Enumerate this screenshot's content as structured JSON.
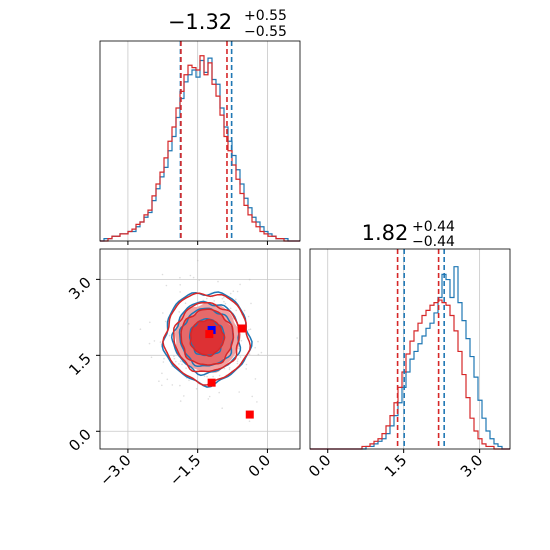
{
  "colors": {
    "blue": "#1f77b4",
    "red": "#d62728",
    "red_fill_outer": "#f1a3a3",
    "red_fill_mid": "#e66a6b",
    "red_fill_inner": "#dd3134",
    "marker_blue": "#0000ff",
    "marker_red": "#ff0000",
    "grid": "#c8c8c8",
    "axis": "#000000"
  },
  "chart_data": [
    {
      "type": "histogram",
      "panel": "top-left marginal",
      "param": "x",
      "title_main": "−1.32",
      "title_sup": "+0.55",
      "title_sub": "−0.55",
      "xlim": [
        -3.6,
        0.7
      ],
      "grid": true,
      "quantile_lines": {
        "blue": [
          -1.87,
          -0.77
        ],
        "red": [
          -1.86,
          -0.87
        ]
      },
      "bin_start": -3.6,
      "bin_width": 0.086,
      "series": [
        {
          "color": "blue",
          "counts": [
            0,
            1,
            1,
            2,
            2,
            3,
            3,
            4,
            4,
            6,
            8,
            10,
            12,
            17,
            22,
            27,
            31,
            38,
            44,
            52,
            60,
            67,
            70,
            72,
            69,
            76,
            71,
            77,
            68,
            66,
            56,
            48,
            42,
            36,
            30,
            24,
            18,
            14,
            10,
            8,
            6,
            4,
            3,
            2,
            1,
            1,
            1,
            0,
            0,
            0
          ]
        },
        {
          "color": "red",
          "counts": [
            0,
            0,
            1,
            2,
            2,
            3,
            3,
            4,
            5,
            7,
            8,
            11,
            13,
            19,
            24,
            29,
            35,
            42,
            48,
            56,
            63,
            70,
            74,
            73,
            72,
            78,
            70,
            75,
            66,
            61,
            53,
            44,
            38,
            32,
            26,
            20,
            15,
            11,
            8,
            6,
            4,
            3,
            2,
            2,
            1,
            1,
            0,
            0,
            0,
            0
          ]
        }
      ]
    },
    {
      "type": "histogram",
      "panel": "bottom-right marginal",
      "param": "y",
      "title_main": "1.82",
      "title_sup": "+0.44",
      "title_sub": "−0.44",
      "xlim": [
        -0.35,
        3.6
      ],
      "xticks": [
        "0.0",
        "1.5",
        "3.0"
      ],
      "grid": true,
      "quantile_lines": {
        "blue": [
          1.51,
          2.3
        ],
        "red": [
          1.38,
          2.19
        ]
      },
      "bin_start": -0.35,
      "bin_width": 0.079,
      "series": [
        {
          "color": "blue",
          "counts": [
            0,
            0,
            0,
            0,
            0,
            0,
            0,
            0,
            0,
            0,
            0,
            0,
            0,
            0,
            1,
            1,
            2,
            3,
            4,
            6,
            9,
            13,
            18,
            24,
            30,
            35,
            38,
            41,
            44,
            47,
            49,
            53,
            59,
            68,
            66,
            59,
            71,
            57,
            50,
            43,
            36,
            28,
            19,
            12,
            7,
            4,
            2,
            1,
            0,
            0
          ]
        },
        {
          "color": "red",
          "counts": [
            0,
            0,
            0,
            0,
            0,
            0,
            0,
            0,
            0,
            0,
            0,
            0,
            0,
            1,
            1,
            2,
            3,
            4,
            6,
            9,
            13,
            18,
            24,
            30,
            37,
            42,
            46,
            49,
            52,
            54,
            56,
            57,
            58,
            57,
            56,
            52,
            46,
            38,
            29,
            20,
            12,
            7,
            4,
            2,
            1,
            1,
            0,
            0,
            0,
            0
          ]
        }
      ]
    },
    {
      "type": "contour",
      "panel": "bottom-left joint",
      "xlim": [
        -3.6,
        0.7
      ],
      "ylim": [
        -0.35,
        3.6
      ],
      "xticks": [
        "−3.0",
        "−1.5",
        "0.0"
      ],
      "yticks": [
        "0.0",
        "1.5",
        "3.0"
      ],
      "grid": true,
      "center": {
        "x": -1.3,
        "y": 1.85
      },
      "contour_radii": {
        "x": [
          0.36,
          0.56,
          0.7,
          0.9
        ],
        "y": [
          0.35,
          0.55,
          0.68,
          0.88
        ]
      },
      "markers": [
        {
          "color": "marker_blue",
          "x": -1.2,
          "y": 2.0
        },
        {
          "color": "marker_red",
          "x": -1.25,
          "y": 1.92
        },
        {
          "color": "marker_red",
          "x": -0.55,
          "y": 2.03
        },
        {
          "color": "marker_red",
          "x": -1.2,
          "y": 0.96
        },
        {
          "color": "marker_red",
          "x": -0.38,
          "y": 0.33
        }
      ]
    }
  ]
}
